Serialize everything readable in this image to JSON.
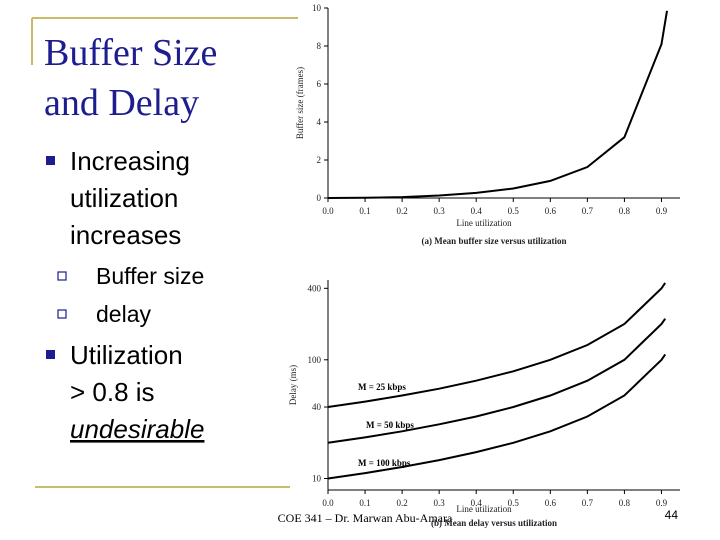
{
  "title": [
    "Buffer Size",
    "and Delay"
  ],
  "bullets": [
    {
      "text": "Increasing utilization increases",
      "sub": [
        "Buffer size",
        "delay"
      ]
    },
    {
      "text": "Utilization > 0.8 is",
      "emphasis": "undesirable"
    }
  ],
  "footer": "COE 341 – Dr. Marwan Abu-Amara",
  "page_number": "44",
  "chart_data": [
    {
      "type": "line",
      "caption": "(a) Mean buffer size versus utilization",
      "xlabel": "Line utilization",
      "ylabel": "Buffer size (frames)",
      "x": [
        0,
        0.1,
        0.2,
        0.3,
        0.4,
        0.5,
        0.6,
        0.7,
        0.8,
        0.9,
        0.915
      ],
      "values": [
        0,
        0.01,
        0.05,
        0.13,
        0.27,
        0.5,
        0.9,
        1.63,
        3.2,
        8.1,
        9.85
      ],
      "color": "#000000",
      "xlim": [
        0,
        0.95
      ],
      "ylim": [
        0,
        10
      ],
      "xticks": [
        {
          "value": 0,
          "label": "0.0"
        },
        0.1,
        0.2,
        0.3,
        0.4,
        0.5,
        0.6,
        0.7,
        0.8,
        0.9
      ],
      "yticks": [
        0,
        2,
        4,
        6,
        8,
        10
      ]
    },
    {
      "type": "line",
      "caption": "(b) Mean delay versus utilization",
      "xlabel": "Line utilization",
      "ylabel": "Delay (ms)",
      "ylog": true,
      "x": [
        0,
        0.1,
        0.2,
        0.3,
        0.4,
        0.5,
        0.6,
        0.7,
        0.8,
        0.9,
        0.91
      ],
      "series": [
        {
          "name": "M = 25 kbps",
          "color": "#000000",
          "values": [
            40,
            44.4,
            50,
            57.1,
            66.7,
            80,
            100,
            133.3,
            200,
            400,
            444
          ]
        },
        {
          "name": "M = 50 kbps",
          "color": "#000000",
          "values": [
            20,
            22.2,
            25,
            28.6,
            33.3,
            40,
            50,
            66.7,
            100,
            200,
            222
          ]
        },
        {
          "name": "M = 100 kbps",
          "color": "#000000",
          "values": [
            10,
            11.1,
            12.5,
            14.3,
            16.7,
            20,
            25,
            33.3,
            50,
            100,
            111
          ]
        }
      ],
      "xlim": [
        0,
        0.95
      ],
      "ylim": [
        8,
        470
      ],
      "xticks": [
        {
          "value": 0,
          "label": "0.0"
        },
        0.1,
        0.2,
        0.3,
        0.4,
        0.5,
        0.6,
        0.7,
        0.8,
        0.9
      ],
      "yticks": [
        10,
        40,
        100,
        400
      ]
    }
  ]
}
